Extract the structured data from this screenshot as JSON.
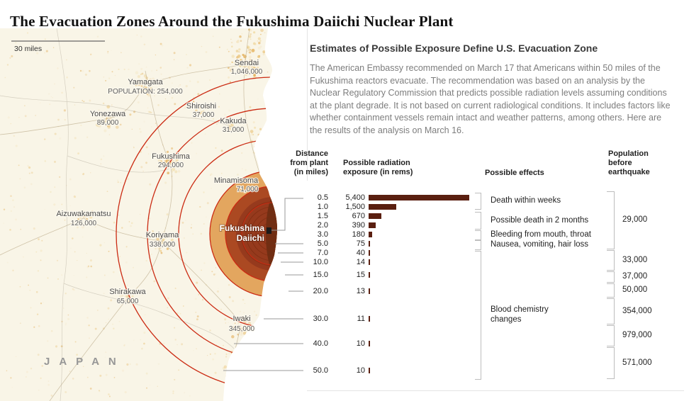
{
  "page_title": "The Evacuation Zones Around the Fukushima Daiichi Nuclear Plant",
  "map": {
    "scale_label": "30 miles",
    "country_label": "JAPAN",
    "plant": {
      "name_line1": "Fukushima",
      "name_line2": "Daiichi"
    },
    "cities": [
      {
        "name": "Yamagata",
        "population": "POPULATION: 254,000"
      },
      {
        "name": "Sendai",
        "population": "1,046,000"
      },
      {
        "name": "Yonezawa",
        "population": "89,000"
      },
      {
        "name": "Shiroishi",
        "population": "37,000"
      },
      {
        "name": "Kakuda",
        "population": "31,000"
      },
      {
        "name": "Fukushima",
        "population": "294,000"
      },
      {
        "name": "Minamisoma",
        "population": "71,000"
      },
      {
        "name": "Aizuwakamatsu",
        "population": "126,000"
      },
      {
        "name": "Koriyama",
        "population": "338,000"
      },
      {
        "name": "Shirakawa",
        "population": "65,000"
      },
      {
        "name": "Iwaki",
        "population": "345,000"
      }
    ]
  },
  "panel": {
    "heading": "Estimates of Possible Exposure Define U.S. Evacuation Zone",
    "body": "The American Embassy recommended on March 17 that Americans within 50 miles of the Fukushima reactors evacuate. The recommendation was based on an analysis by the Nuclear Regulatory Commission that predicts possible radiation levels assuming conditions at the plant degrade. It is not based on current radiological conditions. It includes factors like whether containment vessels remain intact and weather patterns, among others. Here are the results of the analysis on March 16.",
    "column_headers": {
      "distance": "Distance\nfrom plant\n(in miles)",
      "radiation": "Possible radiation\nexposure (in rems)",
      "effects": "Possible effects",
      "population": "Population\nbefore\nearthquake"
    }
  },
  "chart_data": {
    "type": "bar",
    "title": "Estimates of Possible Exposure Define U.S. Evacuation Zone",
    "xlabel": "Distance from plant (in miles)",
    "ylabel": "Possible radiation exposure (in rems)",
    "x": [
      0.5,
      1.0,
      1.5,
      2.0,
      3.0,
      5.0,
      7.0,
      10.0,
      15.0,
      20.0,
      30.0,
      40.0,
      50.0
    ],
    "values": [
      5400,
      1500,
      670,
      390,
      180,
      75,
      40,
      14,
      15,
      13,
      11,
      10,
      10
    ],
    "rows": [
      {
        "distance": "0.5",
        "rems": "5,400",
        "rems_value": 5400
      },
      {
        "distance": "1.0",
        "rems": "1,500",
        "rems_value": 1500
      },
      {
        "distance": "1.5",
        "rems": "670",
        "rems_value": 670
      },
      {
        "distance": "2.0",
        "rems": "390",
        "rems_value": 390
      },
      {
        "distance": "3.0",
        "rems": "180",
        "rems_value": 180
      },
      {
        "distance": "5.0",
        "rems": "75",
        "rems_value": 75
      },
      {
        "distance": "7.0",
        "rems": "40",
        "rems_value": 40
      },
      {
        "distance": "10.0",
        "rems": "14",
        "rems_value": 14
      },
      {
        "distance": "15.0",
        "rems": "15",
        "rems_value": 15
      },
      {
        "distance": "20.0",
        "rems": "13",
        "rems_value": 13
      },
      {
        "distance": "30.0",
        "rems": "11",
        "rems_value": 11
      },
      {
        "distance": "40.0",
        "rems": "10",
        "rems_value": 10
      },
      {
        "distance": "50.0",
        "rems": "10",
        "rems_value": 10
      }
    ],
    "effects_groups": [
      {
        "label": "Death within weeks"
      },
      {
        "label": "Possible death in 2 months"
      },
      {
        "label": "Bleeding from mouth, throat"
      },
      {
        "label": "Nausea, vomiting, hair loss"
      },
      {
        "label": "Blood chemistry\nchanges"
      }
    ],
    "population_groups": [
      {
        "value": "29,000"
      },
      {
        "value": "33,000"
      },
      {
        "value": "37,000"
      },
      {
        "value": "50,000"
      },
      {
        "value": "354,000"
      },
      {
        "value": "979,000"
      },
      {
        "value": "571,000"
      }
    ],
    "colors": {
      "bar": "#5a1f10",
      "red_ring": "#cb2b13",
      "zone_tan": "#e3a65f",
      "zone_rust": "#ab4922",
      "zone_dark": "#963a1d"
    }
  }
}
